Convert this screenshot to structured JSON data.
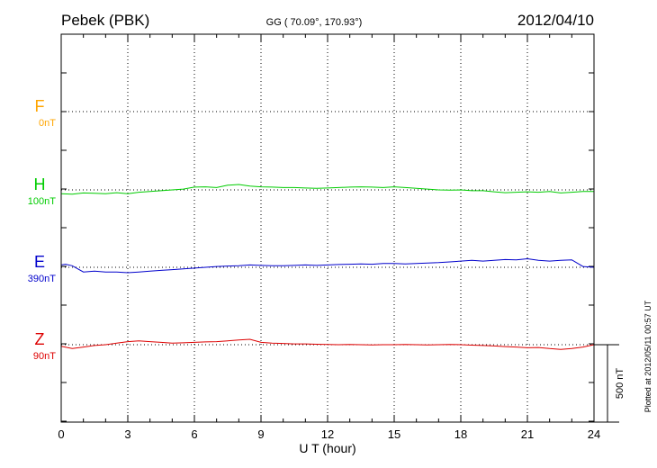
{
  "header": {
    "station": "Pebek (PBK)",
    "coords": "GG ( 70.09°, 170.93°)",
    "date": "2012/04/10"
  },
  "footer": {
    "plotted": "Plotted at 2012/05/11 00:57 UT"
  },
  "chart_data": {
    "type": "line",
    "xlabel": "U T (hour)",
    "xlim": [
      0,
      24
    ],
    "xticks": [
      "0",
      "3",
      "6",
      "9",
      "12",
      "15",
      "18",
      "21",
      "24"
    ],
    "grid": true,
    "scale_bar_label": "500 nT",
    "scale_bar_nT": 500,
    "series": [
      {
        "name": "F",
        "baseline_label": "0nT",
        "color": "#ffa500",
        "x": [],
        "y": []
      },
      {
        "name": "H",
        "baseline_label": "100nT",
        "color": "#00cc00",
        "x": [
          0,
          0.5,
          1,
          1.5,
          2,
          2.5,
          3,
          3.5,
          4,
          4.5,
          5,
          5.5,
          6,
          6.5,
          7,
          7.5,
          8,
          8.5,
          9,
          9.5,
          10,
          10.5,
          11,
          11.5,
          12,
          12.5,
          13,
          13.5,
          14,
          14.5,
          15,
          15.5,
          16,
          16.5,
          17,
          17.5,
          18,
          18.5,
          19,
          19.5,
          20,
          20.5,
          21,
          21.5,
          22,
          22.5,
          23,
          23.5,
          24
        ],
        "y": [
          -25,
          -28,
          -20,
          -22,
          -25,
          -18,
          -25,
          -15,
          -10,
          -5,
          0,
          5,
          18,
          20,
          15,
          30,
          35,
          25,
          20,
          18,
          15,
          15,
          12,
          10,
          12,
          15,
          18,
          20,
          18,
          15,
          20,
          15,
          10,
          5,
          0,
          -2,
          0,
          -5,
          -5,
          -12,
          -18,
          -15,
          -12,
          -15,
          -10,
          -20,
          -15,
          -10,
          -10
        ]
      },
      {
        "name": "E",
        "baseline_label": "390nT",
        "color": "#0000cc",
        "x": [
          0,
          0.2,
          0.5,
          1,
          1.5,
          2,
          2.5,
          3,
          3.5,
          4,
          4.5,
          5,
          5.5,
          6,
          6.5,
          7,
          7.5,
          8,
          8.5,
          9,
          9.5,
          10,
          10.5,
          11,
          11.5,
          12,
          12.5,
          13,
          13.5,
          14,
          14.5,
          15,
          15.5,
          16,
          16.5,
          17,
          17.5,
          18,
          18.5,
          19,
          19.5,
          20,
          20.5,
          21,
          21.5,
          22,
          22.5,
          23,
          23.5,
          24
        ],
        "y": [
          15,
          20,
          10,
          -30,
          -25,
          -30,
          -30,
          -35,
          -30,
          -25,
          -20,
          -15,
          -10,
          -5,
          0,
          5,
          8,
          10,
          15,
          12,
          10,
          10,
          12,
          15,
          12,
          15,
          18,
          20,
          22,
          20,
          25,
          25,
          22,
          25,
          28,
          30,
          35,
          40,
          45,
          40,
          45,
          50,
          48,
          55,
          45,
          40,
          45,
          48,
          5,
          0
        ]
      },
      {
        "name": "Z",
        "baseline_label": "90nT",
        "color": "#dd0000",
        "x": [
          0,
          0.5,
          1,
          1.5,
          2,
          2.5,
          3,
          3.5,
          4,
          4.5,
          5,
          5.5,
          6,
          6.5,
          7,
          7.5,
          8,
          8.5,
          9,
          9.5,
          10,
          10.5,
          11,
          11.5,
          12,
          12.5,
          13,
          13.5,
          14,
          14.5,
          15,
          15.5,
          16,
          16.5,
          17,
          17.5,
          18,
          18.5,
          19,
          19.5,
          20,
          20.5,
          21,
          21.5,
          22,
          22.5,
          23,
          23.5,
          24
        ],
        "y": [
          -10,
          -25,
          -15,
          -5,
          0,
          10,
          20,
          25,
          20,
          15,
          10,
          12,
          15,
          18,
          20,
          25,
          30,
          35,
          15,
          10,
          8,
          5,
          5,
          3,
          2,
          0,
          2,
          0,
          -2,
          0,
          0,
          2,
          0,
          -2,
          0,
          2,
          0,
          -3,
          -5,
          -8,
          -12,
          -15,
          -20,
          -18,
          -25,
          -30,
          -25,
          -15,
          0
        ]
      }
    ]
  }
}
